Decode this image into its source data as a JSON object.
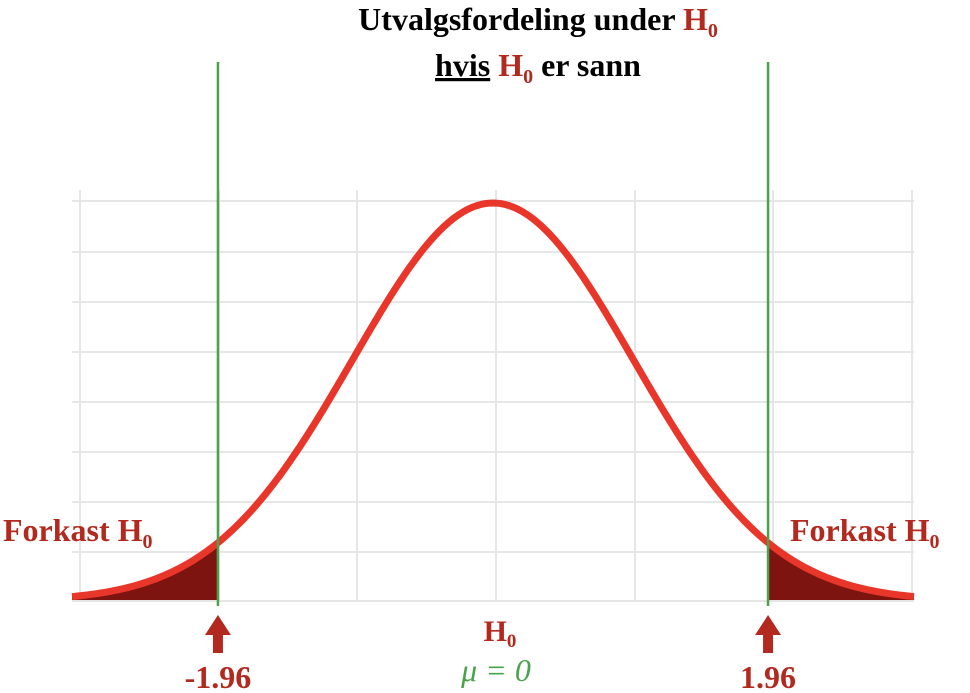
{
  "colors": {
    "accent_red": "#b22a1f",
    "curve_red": "#e8372a",
    "tail_fill": "#7d1410",
    "green": "#4aa34a",
    "grid": "#e6e6e6",
    "text_dark": "#000000"
  },
  "title": {
    "line1_text": "Utvalgsfordeling under ",
    "line1_H": "H",
    "line1_sub": "0",
    "line2_word1": "hvis",
    "line2_H": "H",
    "line2_sub": "0",
    "line2_rest": " er sann"
  },
  "chart_data": {
    "type": "line",
    "distribution": "standard normal density",
    "mean": 0,
    "sd": 1,
    "xlim": [
      -3,
      3
    ],
    "critical_values": [
      -1.96,
      1.96
    ],
    "tails_shaded": true,
    "grid": true,
    "center_label_H": "H",
    "center_label_sub": "0",
    "mu_label": "μ = 0",
    "left_critical_label": "-1.96",
    "right_critical_label": "1.96",
    "reject_label_text": "Forkast H",
    "reject_label_sub": "0"
  }
}
